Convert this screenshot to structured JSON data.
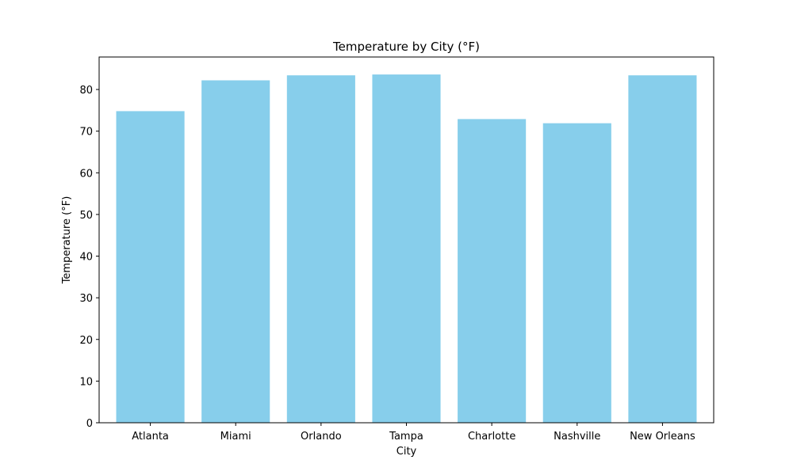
{
  "chart_data": {
    "type": "bar",
    "title": "Temperature by City (°F)",
    "xlabel": "City",
    "ylabel": "Temperature (°F)",
    "categories": [
      "Atlanta",
      "Miami",
      "Orlando",
      "Tampa",
      "Charlotte",
      "Nashville",
      "New Orleans"
    ],
    "values": [
      74.8,
      82.2,
      83.4,
      83.6,
      72.9,
      71.9,
      83.4
    ],
    "ylim": [
      0,
      87.8
    ],
    "yticks": [
      0,
      10,
      20,
      30,
      40,
      50,
      60,
      70,
      80
    ],
    "bar_color": "#87ceeb",
    "grid": false,
    "legend": "none"
  }
}
